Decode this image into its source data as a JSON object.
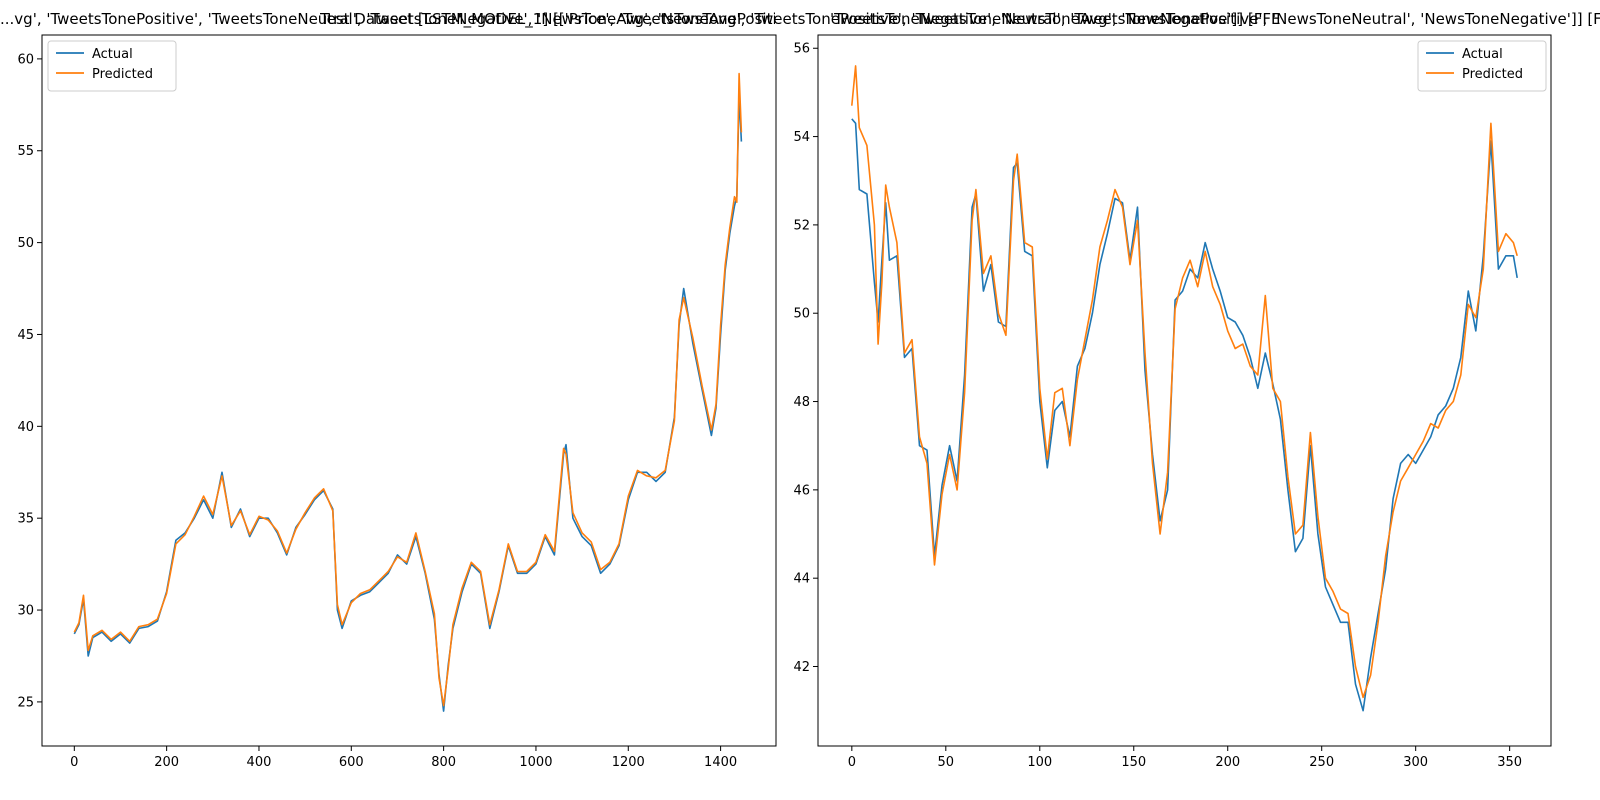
{
  "figure": {
    "title_left": "...vg', 'TweetsTonePositive', 'TweetsToneNeutral', 'TweetsToneNegative', 'NewsToneAvg', 'NewsTonePositive', 'NewsToneNeutral', 'NewsToneNegative']",
    "title_mid": "Test Dataset [LSTM_MODEL_1] [['Price', 'TweetsToneAvg', 'TweetsTonePositive', 'TweetsToneNeutral', 'TweetsToneNegative']] [FFE]",
    "title_right": "'TweetsToneNegative', 'NewsToneAvg', 'NewsTonePositive', 'NewsToneNeutral', 'NewsToneNegative']] [FFE]"
  },
  "colors": {
    "actual": "#1f77b4",
    "predicted": "#ff7f0e"
  },
  "chart_data": [
    {
      "type": "line",
      "legend": "top-left",
      "xlim": [
        -70,
        1520
      ],
      "ylim": [
        22.6,
        61.3
      ],
      "xticks": [
        0,
        200,
        400,
        600,
        800,
        1000,
        1200,
        1400
      ],
      "yticks": [
        25,
        30,
        35,
        40,
        45,
        50,
        55,
        60
      ],
      "x": [
        0,
        10,
        20,
        30,
        40,
        60,
        80,
        100,
        120,
        140,
        160,
        180,
        200,
        220,
        240,
        260,
        280,
        300,
        320,
        340,
        360,
        380,
        400,
        420,
        440,
        460,
        480,
        500,
        520,
        540,
        560,
        570,
        580,
        600,
        620,
        640,
        660,
        680,
        700,
        720,
        740,
        760,
        780,
        790,
        800,
        810,
        820,
        840,
        860,
        880,
        900,
        920,
        940,
        960,
        980,
        1000,
        1020,
        1040,
        1060,
        1065,
        1080,
        1100,
        1120,
        1140,
        1160,
        1180,
        1200,
        1220,
        1240,
        1260,
        1280,
        1300,
        1310,
        1320,
        1340,
        1360,
        1380,
        1390,
        1400,
        1410,
        1420,
        1430,
        1435,
        1440,
        1445
      ],
      "series": [
        {
          "name": "Actual",
          "values": [
            28.7,
            29.2,
            30.6,
            27.5,
            28.5,
            28.8,
            28.3,
            28.7,
            28.2,
            29.0,
            29.1,
            29.4,
            31.0,
            33.8,
            34.2,
            35.0,
            36.0,
            35.0,
            37.5,
            34.5,
            35.5,
            34.0,
            35.0,
            35.0,
            34.2,
            33.0,
            34.5,
            35.2,
            36.0,
            36.5,
            35.5,
            30.0,
            29.0,
            30.5,
            30.8,
            31.0,
            31.5,
            32.0,
            33.0,
            32.5,
            34.0,
            32.0,
            29.5,
            26.5,
            24.5,
            27.0,
            29.0,
            31.0,
            32.5,
            32.0,
            29.0,
            31.0,
            33.5,
            32.0,
            32.0,
            32.5,
            34.0,
            33.0,
            38.5,
            39.0,
            35.0,
            34.0,
            33.5,
            32.0,
            32.5,
            33.5,
            36.0,
            37.5,
            37.5,
            37.0,
            37.5,
            40.5,
            45.5,
            47.5,
            44.5,
            42.0,
            39.5,
            41.0,
            45.0,
            48.5,
            50.5,
            52.0,
            52.5,
            58.0,
            55.5
          ]
        },
        {
          "name": "Predicted",
          "values": [
            28.8,
            29.3,
            30.8,
            27.8,
            28.6,
            28.9,
            28.4,
            28.8,
            28.3,
            29.1,
            29.2,
            29.5,
            30.9,
            33.6,
            34.1,
            35.1,
            36.2,
            35.2,
            37.3,
            34.6,
            35.4,
            34.1,
            35.1,
            34.9,
            34.3,
            33.1,
            34.4,
            35.3,
            36.1,
            36.6,
            35.4,
            30.3,
            29.2,
            30.4,
            30.9,
            31.1,
            31.6,
            32.1,
            32.9,
            32.6,
            34.2,
            32.1,
            29.8,
            26.3,
            24.8,
            26.8,
            29.2,
            31.2,
            32.6,
            32.1,
            29.2,
            31.1,
            33.6,
            32.1,
            32.1,
            32.6,
            34.1,
            33.2,
            38.8,
            38.5,
            35.3,
            34.2,
            33.7,
            32.2,
            32.6,
            33.6,
            36.2,
            37.6,
            37.3,
            37.2,
            37.6,
            40.3,
            45.8,
            47.0,
            44.8,
            42.2,
            39.8,
            41.2,
            45.5,
            48.8,
            50.8,
            52.5,
            52.2,
            59.2,
            56.0
          ]
        }
      ]
    },
    {
      "type": "line",
      "legend": "top-right",
      "xlim": [
        -18,
        372
      ],
      "ylim": [
        40.2,
        56.3
      ],
      "xticks": [
        0,
        50,
        100,
        150,
        200,
        250,
        300,
        350
      ],
      "yticks": [
        42,
        44,
        46,
        48,
        50,
        52,
        54,
        56
      ],
      "x": [
        0,
        2,
        4,
        8,
        12,
        14,
        16,
        18,
        20,
        24,
        28,
        32,
        36,
        40,
        44,
        48,
        52,
        56,
        60,
        64,
        66,
        70,
        74,
        78,
        82,
        86,
        88,
        92,
        96,
        100,
        104,
        108,
        112,
        116,
        120,
        124,
        128,
        132,
        136,
        140,
        144,
        148,
        152,
        156,
        160,
        164,
        168,
        172,
        176,
        180,
        184,
        188,
        192,
        196,
        200,
        204,
        208,
        212,
        216,
        220,
        224,
        228,
        232,
        236,
        240,
        244,
        248,
        252,
        256,
        260,
        264,
        268,
        272,
        276,
        280,
        284,
        288,
        292,
        296,
        300,
        304,
        308,
        312,
        316,
        320,
        324,
        328,
        332,
        336,
        340,
        344,
        348,
        352,
        354
      ],
      "series": [
        {
          "name": "Actual",
          "values": [
            54.4,
            54.3,
            52.8,
            52.7,
            50.7,
            49.8,
            51.2,
            52.5,
            51.2,
            51.3,
            49.0,
            49.2,
            47.0,
            46.9,
            44.5,
            46.1,
            47.0,
            46.2,
            48.6,
            52.4,
            52.7,
            50.5,
            51.1,
            49.8,
            49.7,
            53.3,
            53.4,
            51.4,
            51.3,
            48.0,
            46.5,
            47.8,
            48.0,
            47.2,
            48.8,
            49.2,
            50.0,
            51.1,
            51.8,
            52.6,
            52.5,
            51.2,
            52.4,
            48.7,
            46.8,
            45.3,
            46.0,
            50.3,
            50.5,
            51.0,
            50.8,
            51.6,
            51.0,
            50.5,
            49.9,
            49.8,
            49.5,
            49.0,
            48.3,
            49.1,
            48.4,
            47.6,
            46.0,
            44.6,
            44.9,
            47.0,
            45.0,
            43.8,
            43.4,
            43.0,
            43.0,
            41.6,
            41.0,
            42.2,
            43.2,
            44.2,
            45.8,
            46.6,
            46.8,
            46.6,
            46.9,
            47.2,
            47.7,
            47.9,
            48.3,
            49.0,
            50.5,
            49.6,
            51.3,
            53.9,
            51.0,
            51.3,
            51.3,
            50.8
          ]
        },
        {
          "name": "Predicted",
          "values": [
            54.7,
            55.6,
            54.2,
            53.8,
            52.0,
            49.3,
            50.7,
            52.9,
            52.4,
            51.6,
            49.1,
            49.4,
            47.2,
            46.6,
            44.3,
            45.9,
            46.8,
            46.0,
            48.2,
            52.1,
            52.8,
            50.9,
            51.3,
            50.0,
            49.5,
            53.0,
            53.6,
            51.6,
            51.5,
            48.3,
            46.7,
            48.2,
            48.3,
            47.0,
            48.5,
            49.4,
            50.3,
            51.5,
            52.1,
            52.8,
            52.4,
            51.1,
            52.1,
            49.1,
            46.6,
            45.0,
            46.4,
            50.1,
            50.8,
            51.2,
            50.6,
            51.4,
            50.6,
            50.2,
            49.6,
            49.2,
            49.3,
            48.8,
            48.6,
            50.4,
            48.3,
            48.0,
            46.3,
            45.0,
            45.2,
            47.3,
            45.4,
            44.0,
            43.7,
            43.3,
            43.2,
            42.0,
            41.3,
            41.8,
            43.0,
            44.5,
            45.5,
            46.2,
            46.5,
            46.8,
            47.1,
            47.5,
            47.4,
            47.8,
            48.0,
            48.6,
            50.2,
            49.9,
            51.0,
            54.3,
            51.4,
            51.8,
            51.6,
            51.3
          ]
        }
      ]
    }
  ]
}
